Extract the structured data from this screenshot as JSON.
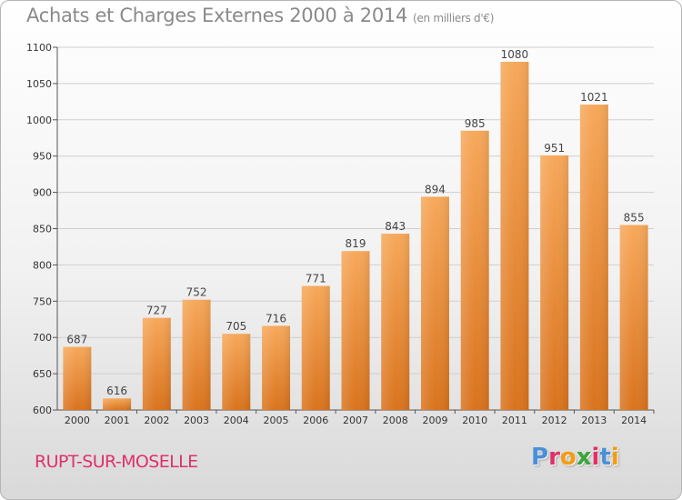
{
  "title": "Achats et Charges Externes 2000 à 2014",
  "subtitle": "(en milliers d'€)",
  "place": "RUPT-SUR-MOSELLE",
  "logo": {
    "letters": [
      "P",
      "r",
      "o",
      "x",
      "i",
      "t",
      "i"
    ],
    "colors": [
      "#4a8fd8",
      "#e0306a",
      "#f39c12",
      "#3aa53a",
      "#e0306a",
      "#4a8fd8",
      "#f39c12"
    ]
  },
  "colors": {
    "bar_top": "#f7a85a",
    "bar_bottom": "#d9731d",
    "grid": "#cfcfcf",
    "place": "#e0306a"
  },
  "chart_data": {
    "type": "bar",
    "title": "Achats et Charges Externes 2000 à 2014",
    "subtitle": "(en milliers d'€)",
    "categories": [
      "2000",
      "2001",
      "2002",
      "2003",
      "2004",
      "2005",
      "2006",
      "2007",
      "2008",
      "2009",
      "2010",
      "2011",
      "2012",
      "2013",
      "2014"
    ],
    "values": [
      687,
      616,
      727,
      752,
      705,
      716,
      771,
      819,
      843,
      894,
      985,
      1080,
      951,
      1021,
      855
    ],
    "ylim": [
      600,
      1100
    ],
    "yticks": [
      600,
      650,
      700,
      750,
      800,
      850,
      900,
      950,
      1000,
      1050,
      1100
    ],
    "grid": true,
    "xlabel": "",
    "ylabel": ""
  }
}
